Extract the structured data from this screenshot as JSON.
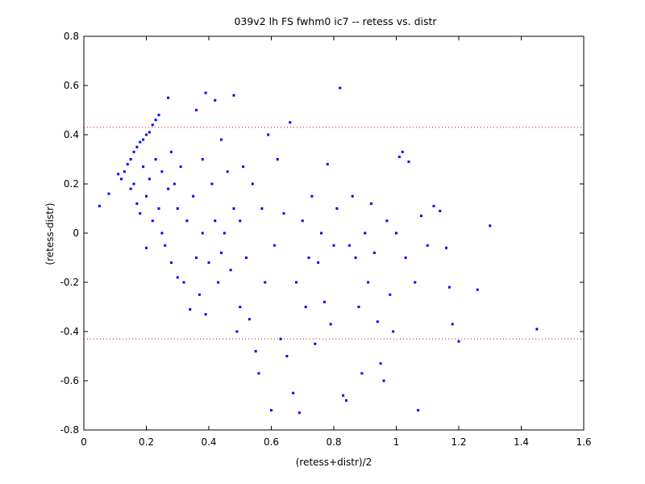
{
  "chart_data": {
    "type": "scatter",
    "title": "039v2 lh FS fwhm0 ic7 -- retess vs. distr",
    "xlabel": "(retess+distr)/2",
    "ylabel": "(retess-distr)",
    "xlim": [
      0,
      1.6
    ],
    "ylim": [
      -0.8,
      0.8
    ],
    "xticks": [
      0,
      0.2,
      0.4,
      0.6,
      0.8,
      1,
      1.2,
      1.4,
      1.6
    ],
    "xtick_labels": [
      "0",
      "0.2",
      "0.4",
      "0.6",
      "0.8",
      "1",
      "1.2",
      "1.4",
      "1.6"
    ],
    "yticks": [
      -0.8,
      -0.6,
      -0.4,
      -0.2,
      0,
      0.2,
      0.4,
      0.6,
      0.8
    ],
    "ytick_labels": [
      "-0.8",
      "-0.6",
      "-0.4",
      "-0.2",
      "0",
      "0.2",
      "0.4",
      "0.6",
      "0.8"
    ],
    "grid": false,
    "marker": "dot",
    "marker_color": "#0000ff",
    "reference_lines": [
      {
        "y": 0.43,
        "color": "#e00000",
        "style": "dotted"
      },
      {
        "y": -0.43,
        "color": "#e00000",
        "style": "dotted"
      }
    ],
    "points": [
      [
        0.05,
        0.11
      ],
      [
        0.08,
        0.16
      ],
      [
        0.11,
        0.24
      ],
      [
        0.12,
        0.22
      ],
      [
        0.13,
        0.25
      ],
      [
        0.14,
        0.28
      ],
      [
        0.15,
        0.3
      ],
      [
        0.15,
        0.18
      ],
      [
        0.16,
        0.33
      ],
      [
        0.16,
        0.2
      ],
      [
        0.17,
        0.35
      ],
      [
        0.17,
        0.12
      ],
      [
        0.18,
        0.37
      ],
      [
        0.18,
        0.08
      ],
      [
        0.19,
        0.38
      ],
      [
        0.19,
        0.27
      ],
      [
        0.2,
        0.4
      ],
      [
        0.2,
        0.15
      ],
      [
        0.2,
        -0.06
      ],
      [
        0.21,
        0.41
      ],
      [
        0.21,
        0.22
      ],
      [
        0.22,
        0.44
      ],
      [
        0.22,
        0.05
      ],
      [
        0.23,
        0.46
      ],
      [
        0.23,
        0.3
      ],
      [
        0.24,
        0.48
      ],
      [
        0.24,
        0.1
      ],
      [
        0.25,
        0.25
      ],
      [
        0.25,
        0.0
      ],
      [
        0.26,
        -0.05
      ],
      [
        0.27,
        0.55
      ],
      [
        0.27,
        0.18
      ],
      [
        0.28,
        0.33
      ],
      [
        0.28,
        -0.12
      ],
      [
        0.29,
        0.2
      ],
      [
        0.3,
        0.1
      ],
      [
        0.3,
        -0.18
      ],
      [
        0.31,
        0.27
      ],
      [
        0.32,
        -0.2
      ],
      [
        0.33,
        0.05
      ],
      [
        0.34,
        -0.31
      ],
      [
        0.35,
        0.15
      ],
      [
        0.36,
        0.5
      ],
      [
        0.36,
        -0.1
      ],
      [
        0.37,
        -0.25
      ],
      [
        0.38,
        0.3
      ],
      [
        0.38,
        0.0
      ],
      [
        0.39,
        0.57
      ],
      [
        0.39,
        -0.33
      ],
      [
        0.4,
        -0.12
      ],
      [
        0.41,
        0.2
      ],
      [
        0.42,
        0.54
      ],
      [
        0.42,
        0.05
      ],
      [
        0.43,
        -0.2
      ],
      [
        0.44,
        0.38
      ],
      [
        0.44,
        -0.08
      ],
      [
        0.45,
        0.0
      ],
      [
        0.46,
        0.25
      ],
      [
        0.47,
        -0.15
      ],
      [
        0.48,
        0.56
      ],
      [
        0.48,
        0.1
      ],
      [
        0.49,
        -0.4
      ],
      [
        0.5,
        -0.3
      ],
      [
        0.5,
        0.05
      ],
      [
        0.51,
        0.27
      ],
      [
        0.52,
        -0.1
      ],
      [
        0.53,
        -0.35
      ],
      [
        0.54,
        0.2
      ],
      [
        0.55,
        -0.48
      ],
      [
        0.56,
        -0.57
      ],
      [
        0.57,
        0.1
      ],
      [
        0.58,
        -0.2
      ],
      [
        0.59,
        0.4
      ],
      [
        0.6,
        -0.72
      ],
      [
        0.61,
        -0.05
      ],
      [
        0.62,
        0.3
      ],
      [
        0.63,
        -0.43
      ],
      [
        0.64,
        0.08
      ],
      [
        0.65,
        -0.5
      ],
      [
        0.66,
        0.45
      ],
      [
        0.67,
        -0.65
      ],
      [
        0.68,
        -0.2
      ],
      [
        0.69,
        -0.73
      ],
      [
        0.7,
        0.05
      ],
      [
        0.71,
        -0.3
      ],
      [
        0.72,
        -0.1
      ],
      [
        0.73,
        0.15
      ],
      [
        0.74,
        -0.45
      ],
      [
        0.75,
        -0.12
      ],
      [
        0.76,
        0.0
      ],
      [
        0.77,
        -0.28
      ],
      [
        0.78,
        0.28
      ],
      [
        0.79,
        -0.37
      ],
      [
        0.8,
        -0.05
      ],
      [
        0.81,
        0.1
      ],
      [
        0.82,
        0.59
      ],
      [
        0.83,
        -0.66
      ],
      [
        0.84,
        -0.68
      ],
      [
        0.85,
        -0.05
      ],
      [
        0.86,
        0.15
      ],
      [
        0.87,
        -0.1
      ],
      [
        0.88,
        -0.3
      ],
      [
        0.89,
        -0.57
      ],
      [
        0.9,
        0.0
      ],
      [
        0.91,
        -0.2
      ],
      [
        0.92,
        0.12
      ],
      [
        0.93,
        -0.08
      ],
      [
        0.94,
        -0.36
      ],
      [
        0.95,
        -0.53
      ],
      [
        0.96,
        -0.6
      ],
      [
        0.97,
        0.05
      ],
      [
        0.98,
        -0.25
      ],
      [
        0.99,
        -0.4
      ],
      [
        1.0,
        0.0
      ],
      [
        1.01,
        0.31
      ],
      [
        1.02,
        0.33
      ],
      [
        1.03,
        -0.1
      ],
      [
        1.04,
        0.29
      ],
      [
        1.06,
        -0.2
      ],
      [
        1.07,
        -0.72
      ],
      [
        1.08,
        0.07
      ],
      [
        1.1,
        -0.05
      ],
      [
        1.12,
        0.11
      ],
      [
        1.14,
        0.09
      ],
      [
        1.16,
        -0.06
      ],
      [
        1.17,
        -0.22
      ],
      [
        1.18,
        -0.37
      ],
      [
        1.2,
        -0.44
      ],
      [
        1.26,
        -0.23
      ],
      [
        1.3,
        0.03
      ],
      [
        1.45,
        -0.39
      ]
    ]
  }
}
